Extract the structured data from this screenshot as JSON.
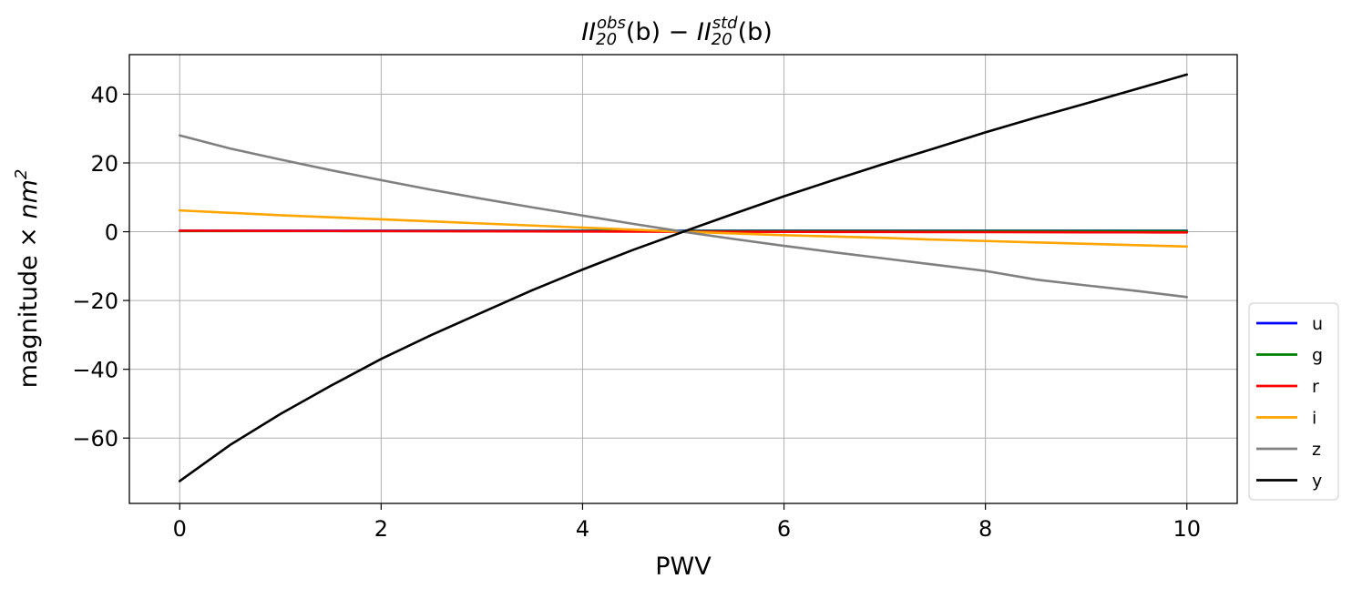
{
  "chart_data": {
    "type": "line",
    "title": {
      "main": "II",
      "sub1": "20",
      "sup1": "obs",
      "arg1": "(b) − ",
      "main2": "II",
      "sub2": "20",
      "sup2": "std",
      "arg2": "(b)"
    },
    "xlabel": "PWV",
    "ylabel": {
      "text": "magnitude × ",
      "unit": "nm",
      "unit_exp": "2"
    },
    "xlim": [
      -0.5,
      10.5
    ],
    "ylim": [
      -79,
      51.5
    ],
    "xticks": [
      0,
      2,
      4,
      6,
      8,
      10
    ],
    "yticks": [
      -60,
      -40,
      -20,
      0,
      20,
      40
    ],
    "xtick_labels": [
      "0",
      "2",
      "4",
      "6",
      "8",
      "10"
    ],
    "ytick_labels": [
      "−60",
      "−40",
      "−20",
      "0",
      "20",
      "40"
    ],
    "grid": true,
    "legend_position": "outside-right-bottom",
    "x": [
      0,
      0.5,
      1,
      1.5,
      2,
      2.5,
      3,
      3.5,
      4,
      4.5,
      5,
      5.5,
      6,
      6.5,
      7,
      7.5,
      8,
      8.5,
      9,
      9.5,
      10
    ],
    "series": [
      {
        "name": "u",
        "color": "#0000ff",
        "values": [
          0.3,
          0.3,
          0.3,
          0.3,
          0.3,
          0.3,
          0.3,
          0.3,
          0.3,
          0.3,
          0.3,
          0.3,
          0.3,
          0.3,
          0.3,
          0.3,
          0.3,
          0.3,
          0.3,
          0.3,
          0.3
        ]
      },
      {
        "name": "g",
        "color": "#008000",
        "values": [
          0.2,
          0.2,
          0.2,
          0.2,
          0.2,
          0.2,
          0.2,
          0.2,
          0.2,
          0.2,
          0.2,
          0.2,
          0.2,
          0.2,
          0.2,
          0.2,
          0.2,
          0.2,
          0.2,
          0.2,
          0.2
        ]
      },
      {
        "name": "r",
        "color": "#ff0000",
        "values": [
          0.3,
          0.27,
          0.24,
          0.21,
          0.18,
          0.15,
          0.12,
          0.09,
          0.06,
          0.03,
          0.0,
          -0.02,
          -0.04,
          -0.06,
          -0.08,
          -0.1,
          -0.12,
          -0.14,
          -0.16,
          -0.18,
          -0.2
        ]
      },
      {
        "name": "i",
        "color": "#ffa500",
        "values": [
          6.2,
          5.5,
          4.8,
          4.2,
          3.6,
          3.0,
          2.4,
          1.8,
          1.2,
          0.6,
          0.0,
          -0.5,
          -1.0,
          -1.4,
          -1.8,
          -2.3,
          -2.7,
          -3.1,
          -3.5,
          -3.9,
          -4.3
        ]
      },
      {
        "name": "z",
        "color": "#808080",
        "values": [
          28.0,
          24.2,
          21.0,
          17.9,
          15.0,
          12.2,
          9.6,
          7.1,
          4.7,
          2.3,
          0.0,
          -2.1,
          -4.1,
          -6.0,
          -7.8,
          -9.6,
          -11.4,
          -13.9,
          -15.6,
          -17.2,
          -19.0
        ]
      },
      {
        "name": "y",
        "color": "#000000",
        "values": [
          -72.5,
          -62.0,
          -53.0,
          -44.8,
          -37.0,
          -30.0,
          -23.5,
          -17.0,
          -11.0,
          -5.3,
          0.0,
          5.2,
          10.3,
          15.1,
          19.8,
          24.3,
          28.9,
          33.2,
          37.3,
          41.5,
          45.7
        ]
      }
    ]
  }
}
